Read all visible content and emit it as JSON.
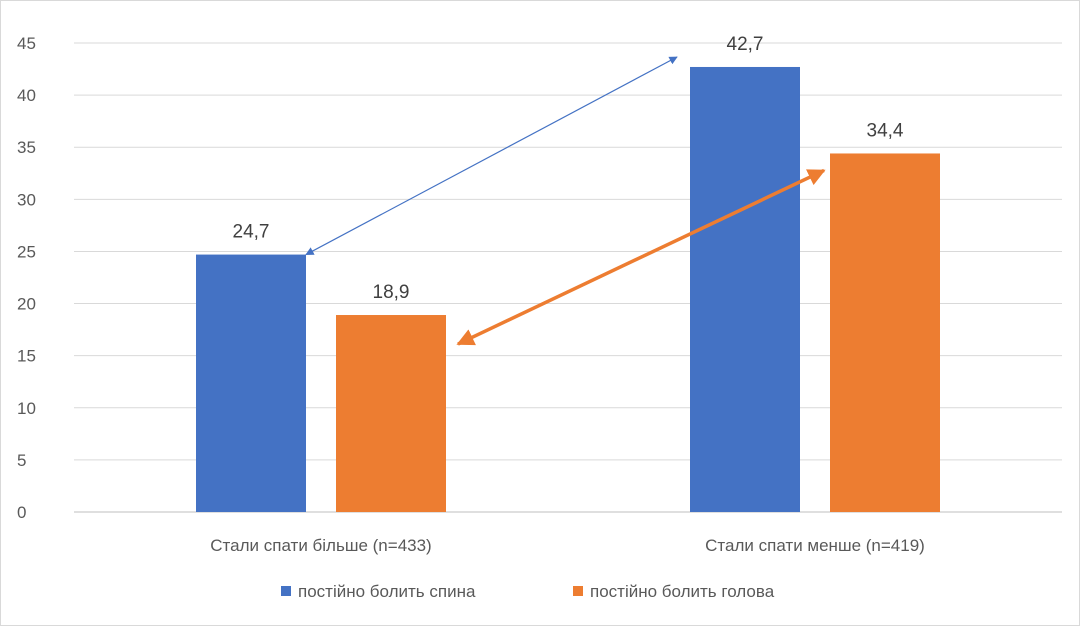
{
  "chart_data": {
    "type": "bar",
    "categories": [
      "Стали спати більше (n=433)",
      "Стали спати менше (n=419)"
    ],
    "series": [
      {
        "name": "постійно болить спина",
        "values": [
          24.7,
          42.7
        ],
        "labels": [
          "24,7",
          "42,7"
        ],
        "color": "#4472c4"
      },
      {
        "name": "постійно болить голова",
        "values": [
          18.9,
          34.4
        ],
        "labels": [
          "18,9",
          "34,4"
        ],
        "color": "#ed7d31"
      }
    ],
    "ylim": [
      0,
      45
    ],
    "yticks": [
      "0",
      "5",
      "10",
      "15",
      "20",
      "25",
      "30",
      "35",
      "40",
      "45"
    ],
    "title": "",
    "xlabel": "",
    "ylabel": "",
    "grid": true,
    "legend_position": "bottom",
    "annotations": [
      {
        "type": "arrow",
        "from": {
          "category": 0,
          "value": 24.7
        },
        "to": {
          "category": 1,
          "value": 42.7
        },
        "color": "#4472c4",
        "heads": "both"
      },
      {
        "type": "arrow",
        "from": {
          "category": 0,
          "value": 18.9
        },
        "to": {
          "category": 1,
          "value": 34.4
        },
        "color": "#ed7d31",
        "heads": "both"
      }
    ]
  }
}
